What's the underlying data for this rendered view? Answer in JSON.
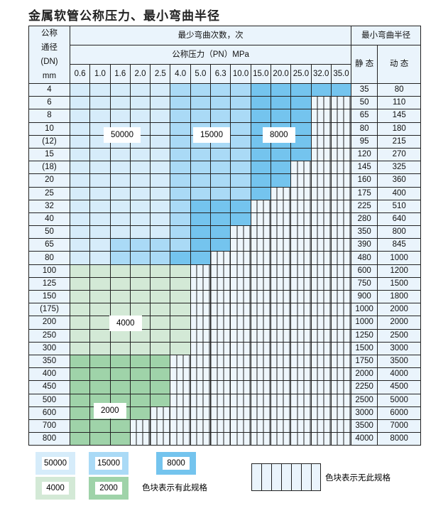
{
  "title": "金属软管公称压力、最小弯曲半径",
  "header": {
    "dn_label": [
      "公称",
      "通径",
      "(DN)",
      "mm"
    ],
    "cycles_label": "最少弯曲次数，次",
    "pressure_label": "公称压力（PN）MPa",
    "radius_label": "最小弯曲半径",
    "static_label": "静 态",
    "dynamic_label": "动 态",
    "pressures": [
      "0.6",
      "1.0",
      "1.6",
      "2.0",
      "2.5",
      "4.0",
      "5.0",
      "6.3",
      "10.0",
      "15.0",
      "20.0",
      "25.0",
      "32.0",
      "35.0"
    ]
  },
  "colors": {
    "a": "#d6ecfa",
    "b": "#aadaf6",
    "c": "#74c4ee",
    "d": "#d3e9d6",
    "e": "#9fd3a9",
    "x": "#eef6fc"
  },
  "rows": [
    {
      "dn": "4",
      "static": "35",
      "dynamic": "80",
      "cells": "aaaaabbbbccccc"
    },
    {
      "dn": "6",
      "static": "50",
      "dynamic": "110",
      "cells": "aaaaabbbbcccxx"
    },
    {
      "dn": "8",
      "static": "65",
      "dynamic": "145",
      "cells": "aaaaabbbbcccxx"
    },
    {
      "dn": "10",
      "static": "80",
      "dynamic": "180",
      "cells": "aaaaabbbbcccxx"
    },
    {
      "dn": "(12)",
      "static": "95",
      "dynamic": "215",
      "cells": "aaaaabbbbcccxx"
    },
    {
      "dn": "15",
      "static": "120",
      "dynamic": "270",
      "cells": "aaaaabbbbcccxx"
    },
    {
      "dn": "(18)",
      "static": "145",
      "dynamic": "325",
      "cells": "aaaaabbbbccxxx"
    },
    {
      "dn": "20",
      "static": "160",
      "dynamic": "360",
      "cells": "aaaaabbbbccxxx"
    },
    {
      "dn": "25",
      "static": "175",
      "dynamic": "400",
      "cells": "aaaaabbbbcxxxx"
    },
    {
      "dn": "32",
      "static": "225",
      "dynamic": "510",
      "cells": "aaaaabcccxxxxx"
    },
    {
      "dn": "40",
      "static": "280",
      "dynamic": "640",
      "cells": "aaaaabcccxxxxx"
    },
    {
      "dn": "50",
      "static": "350",
      "dynamic": "800",
      "cells": "aaaaabccxxxxxx"
    },
    {
      "dn": "65",
      "static": "390",
      "dynamic": "845",
      "cells": "aabbbbccxxxxxx"
    },
    {
      "dn": "80",
      "static": "480",
      "dynamic": "1000",
      "cells": "aabbbccxxxxxxx"
    },
    {
      "dn": "100",
      "static": "600",
      "dynamic": "1200",
      "cells": "ddddddxxxxxxxx"
    },
    {
      "dn": "125",
      "static": "750",
      "dynamic": "1500",
      "cells": "ddddddxxxxxxxx"
    },
    {
      "dn": "150",
      "static": "900",
      "dynamic": "1800",
      "cells": "ddddddxxxxxxxx"
    },
    {
      "dn": "(175)",
      "static": "1000",
      "dynamic": "2000",
      "cells": "ddddddxxxxxxxx"
    },
    {
      "dn": "200",
      "static": "1000",
      "dynamic": "2000",
      "cells": "ddddddxxxxxxxx"
    },
    {
      "dn": "250",
      "static": "1250",
      "dynamic": "2500",
      "cells": "ddddddxxxxxxxx"
    },
    {
      "dn": "300",
      "static": "1500",
      "dynamic": "3000",
      "cells": "ddddddxxxxxxxx"
    },
    {
      "dn": "350",
      "static": "1750",
      "dynamic": "3500",
      "cells": "eeeeexxxxxxxxx"
    },
    {
      "dn": "400",
      "static": "2000",
      "dynamic": "4000",
      "cells": "eeeeexxxxxxxxx"
    },
    {
      "dn": "450",
      "static": "2250",
      "dynamic": "4500",
      "cells": "eeeeexxxxxxxxx"
    },
    {
      "dn": "500",
      "static": "2500",
      "dynamic": "5000",
      "cells": "eeeeexxxxxxxxx"
    },
    {
      "dn": "600",
      "static": "3000",
      "dynamic": "6000",
      "cells": "eeeexxxxxxxxxx"
    },
    {
      "dn": "700",
      "static": "3500",
      "dynamic": "7000",
      "cells": "eeexxxxxxxxxxx"
    },
    {
      "dn": "800",
      "static": "4000",
      "dynamic": "8000",
      "cells": "eeexxxxxxxxxxx"
    }
  ],
  "region_labels": {
    "a": "50000",
    "b": "15000",
    "c": "8000",
    "d": "4000",
    "e": "2000"
  },
  "legend": {
    "has_spec": "色块表示有此规格",
    "no_spec": "色块表示无此规格"
  }
}
